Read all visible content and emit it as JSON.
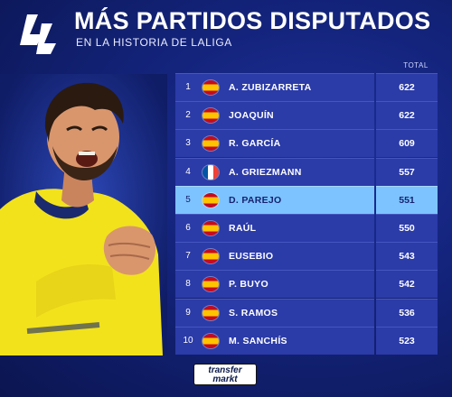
{
  "header": {
    "title": "MÁS PARTIDOS DISPUTADOS",
    "subtitle": "EN LA HISTORIA DE LALIGA"
  },
  "table": {
    "total_label": "TOTAL",
    "highlight_color": "#7dc3ff",
    "row_color": "#2b3ba8",
    "rows": [
      {
        "rank": "1",
        "flag": "spain-flag-icon",
        "name": "A. ZUBIZARRETA",
        "total": "622"
      },
      {
        "rank": "2",
        "flag": "spain-flag-icon",
        "name": "JOAQUÍN",
        "total": "622"
      },
      {
        "rank": "3",
        "flag": "spain-flag-icon",
        "name": "R. GARCÍA",
        "total": "609"
      },
      {
        "rank": "4",
        "flag": "france-flag-icon",
        "name": "A. GRIEZMANN",
        "total": "557"
      },
      {
        "rank": "5",
        "flag": "spain-flag-icon",
        "name": "D. PAREJO",
        "total": "551",
        "highlighted": true
      },
      {
        "rank": "6",
        "flag": "spain-flag-icon",
        "name": "RAÚL",
        "total": "550"
      },
      {
        "rank": "7",
        "flag": "spain-flag-icon",
        "name": "EUSEBIO",
        "total": "543"
      },
      {
        "rank": "8",
        "flag": "spain-flag-icon",
        "name": "P. BUYO",
        "total": "542"
      },
      {
        "rank": "9",
        "flag": "spain-flag-icon",
        "name": "S. RAMOS",
        "total": "536"
      },
      {
        "rank": "10",
        "flag": "spain-flag-icon",
        "name": "M. SANCHÍS",
        "total": "523"
      }
    ]
  },
  "footer": {
    "logo_line1": "transfer",
    "logo_line2": "markt"
  }
}
